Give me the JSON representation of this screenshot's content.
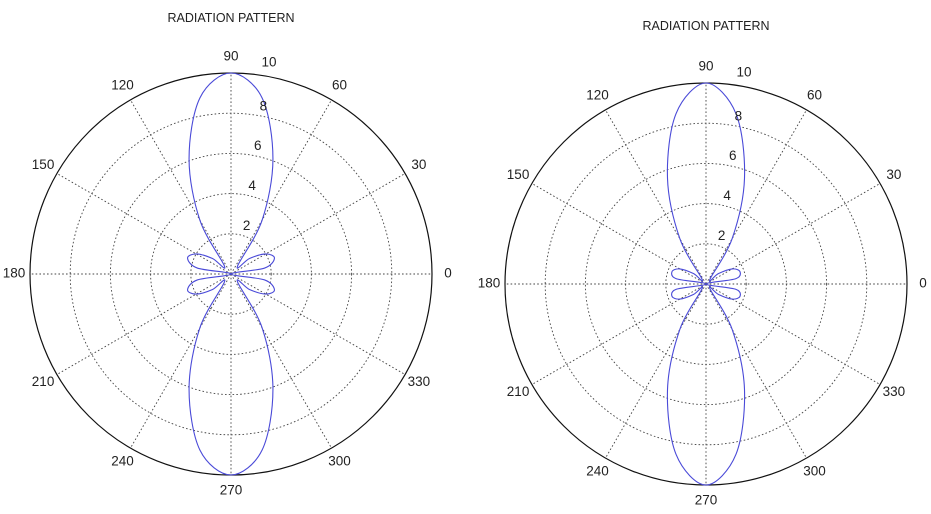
{
  "chart_data": [
    {
      "type": "polar-line",
      "title": "RADIATION PATTERN",
      "angle_ticks": [
        "0",
        "30",
        "60",
        "90",
        "120",
        "150",
        "180",
        "210",
        "240",
        "270",
        "300",
        "330"
      ],
      "angle_tick_values": [
        0,
        30,
        60,
        90,
        120,
        150,
        180,
        210,
        240,
        270,
        300,
        330
      ],
      "radial_ticks": [
        "2",
        "4",
        "6",
        "8",
        "10"
      ],
      "radial_tick_values": [
        2,
        4,
        6,
        8,
        10
      ],
      "rlim": [
        0,
        10
      ],
      "grid": true,
      "line_color": "#4a4ad8",
      "series": [
        {
          "theta_deg": [
            0,
            10,
            20,
            30,
            40,
            50,
            60,
            70,
            80,
            90,
            100,
            110,
            120,
            130,
            140,
            150,
            160,
            170,
            180,
            190,
            200,
            210,
            220,
            230,
            240,
            250,
            260,
            270,
            280,
            290,
            300,
            310,
            320,
            330,
            340,
            350
          ],
          "r": [
            0,
            1.7,
            2.3,
            2.0,
            1.2,
            0.5,
            3.1,
            6.1,
            8.9,
            10,
            8.9,
            6.1,
            3.1,
            0.5,
            1.2,
            2.0,
            2.3,
            1.7,
            0,
            1.7,
            2.3,
            2.0,
            1.2,
            0.5,
            3.1,
            6.1,
            8.9,
            10,
            8.9,
            6.1,
            3.1,
            0.5,
            1.2,
            2.0,
            2.3,
            1.7
          ]
        }
      ]
    },
    {
      "type": "polar-line",
      "title": "RADIATION PATTERN",
      "angle_ticks": [
        "0",
        "30",
        "60",
        "90",
        "120",
        "150",
        "180",
        "210",
        "240",
        "270",
        "300",
        "330"
      ],
      "angle_tick_values": [
        0,
        30,
        60,
        90,
        120,
        150,
        180,
        210,
        240,
        270,
        300,
        330
      ],
      "radial_ticks": [
        "2",
        "4",
        "6",
        "8",
        "10"
      ],
      "radial_tick_values": [
        2,
        4,
        6,
        8,
        10
      ],
      "rlim": [
        0,
        10
      ],
      "grid": true,
      "line_color": "#4a4ad8",
      "series": [
        {
          "theta_deg": [
            0,
            10,
            20,
            30,
            40,
            50,
            60,
            70,
            80,
            90,
            100,
            110,
            120,
            130,
            140,
            150,
            160,
            170,
            180,
            190,
            200,
            210,
            220,
            230,
            240,
            250,
            260,
            270,
            280,
            290,
            300,
            310,
            320,
            330,
            340,
            350
          ],
          "r": [
            0,
            1.5,
            1.8,
            1.5,
            0.8,
            0.3,
            2.6,
            5.6,
            8.6,
            10,
            8.6,
            5.6,
            2.6,
            0.3,
            0.8,
            1.5,
            1.8,
            1.5,
            0,
            1.5,
            1.8,
            1.5,
            0.8,
            0.3,
            2.6,
            5.6,
            8.6,
            10,
            8.6,
            5.6,
            2.6,
            0.3,
            0.8,
            1.5,
            1.8,
            1.5
          ]
        }
      ]
    }
  ]
}
